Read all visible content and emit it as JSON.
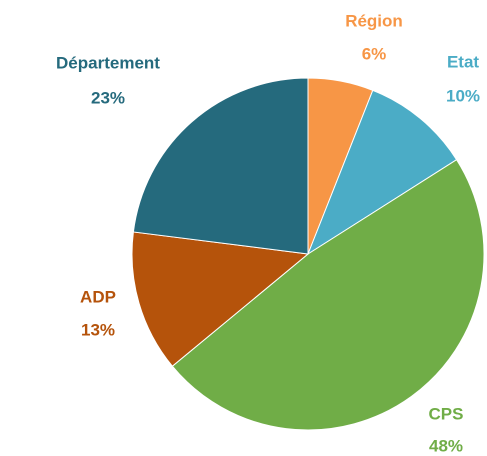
{
  "chart_data": {
    "type": "pie",
    "categories": [
      "Région",
      "Etat",
      "CPS",
      "ADP",
      "Département"
    ],
    "values": [
      6,
      10,
      48,
      13,
      23
    ],
    "value_labels": [
      "6%",
      "10%",
      "48%",
      "13%",
      "23%"
    ],
    "colors": [
      "#f79646",
      "#4bacc6",
      "#70ad47",
      "#b5530b",
      "#256a7d"
    ]
  }
}
